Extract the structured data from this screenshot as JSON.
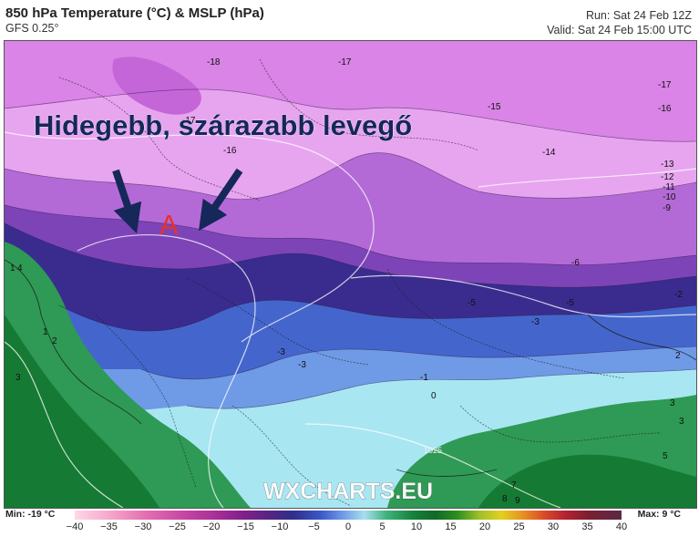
{
  "header": {
    "title": "850 hPa Temperature (°C) & MSLP (hPa)",
    "model": "GFS 0.25°",
    "run": "Run: Sat 24 Feb 12Z",
    "valid": "Valid: Sat 24 Feb 15:00 UTC"
  },
  "overlay": {
    "headline": "Hidegebb, szárazabb levegő",
    "anticyclone_marker": "A"
  },
  "watermark": "WXCHARTS.EU",
  "map_labels": {
    "t_m18": "-18",
    "t_m17a": "-17",
    "t_m17b": "-17",
    "t_m17c": "-17",
    "t_m16a": "-16",
    "t_m16b": "-16",
    "t_m15": "-15",
    "t_m14": "-14",
    "t_m13": "-13",
    "t_m12": "-12",
    "t_m11": "-11",
    "t_m10": "-10",
    "t_m9": "-9",
    "t_m6": "-6",
    "t_m5a": "-5",
    "t_m5b": "-5",
    "t_m3a": "-3",
    "t_m3b": "-3",
    "t_m3c": "-3",
    "t_m2": "-2",
    "t_m1": "-1",
    "t_0": "0",
    "t_1a": "1",
    "t_1b": "1",
    "t_2a": "2",
    "t_2b": "2",
    "t_3a": "3",
    "t_3b": "3",
    "t_3c": "3",
    "t_4": "4",
    "t_5": "5",
    "t_7": "7",
    "t_8": "8",
    "t_9": "9",
    "p_1025": "1025"
  },
  "legend": {
    "min_label": "Min: -19 °C",
    "max_label": "Max: 9 °C",
    "ticks": [
      "−40",
      "−35",
      "−30",
      "−25",
      "−20",
      "−15",
      "−10",
      "−5",
      "0",
      "5",
      "10",
      "15",
      "20",
      "25",
      "30",
      "35",
      "40"
    ]
  },
  "colors": {
    "cold_magenta": "#d98ae6",
    "violet": "#8a42c0",
    "deep_purple": "#3a2a8a",
    "blue": "#5a86de",
    "light_cyan": "#a8e6f2",
    "green": "#2e9a55",
    "dark_green": "#157a33",
    "arrow_navy": "#16275a",
    "anticyclone_red": "#e8302a"
  }
}
